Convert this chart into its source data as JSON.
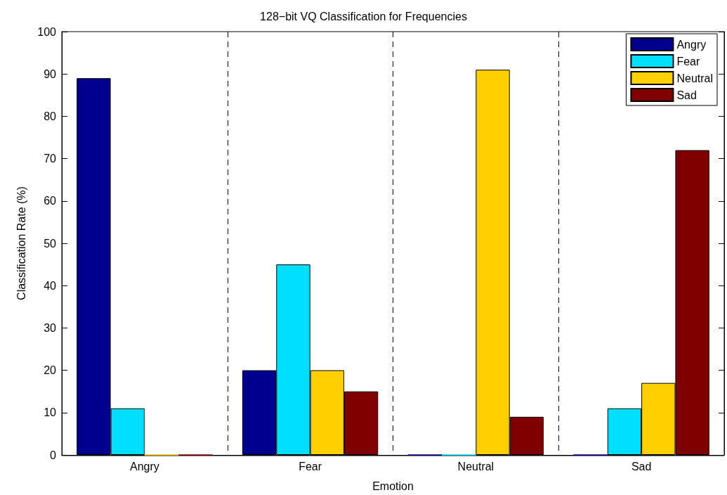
{
  "chart_data": {
    "type": "bar",
    "title": "128−bit VQ Classification for Frequencies",
    "xlabel": "Emotion",
    "ylabel": "Classification Rate (%)",
    "categories": [
      "Angry",
      "Fear",
      "Neutral",
      "Sad"
    ],
    "series": [
      {
        "name": "Angry",
        "color": "#00008f",
        "values": [
          89,
          20,
          0,
          0
        ]
      },
      {
        "name": "Fear",
        "color": "#00dfff",
        "values": [
          11,
          45,
          0,
          11
        ]
      },
      {
        "name": "Neutral",
        "color": "#ffcf00",
        "values": [
          0,
          20,
          91,
          17
        ]
      },
      {
        "name": "Sad",
        "color": "#800000",
        "values": [
          0,
          15,
          9,
          72
        ]
      }
    ],
    "ylim": [
      0,
      100
    ],
    "yticks": [
      0,
      10,
      20,
      30,
      40,
      50,
      60,
      70,
      80,
      90,
      100
    ],
    "grid": "x",
    "legend": "top right"
  }
}
